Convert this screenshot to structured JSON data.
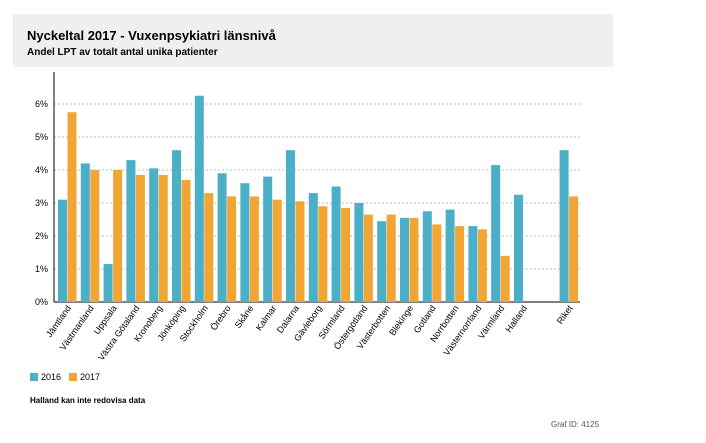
{
  "header": {
    "title": "Nyckeltal 2017 - Vuxenpsykiatri länsnivå",
    "subtitle": "Andel LPT av totalt antal unika patienter"
  },
  "footnote": "Halland kan inte redovisa data",
  "graf_id": "Graf ID: 4125",
  "colors": {
    "s2016": "#4bafc8",
    "s2017": "#f0a534"
  },
  "chart_data": {
    "type": "bar",
    "title": "Nyckeltal 2017 - Vuxenpsykiatri länsnivå",
    "subtitle": "Andel LPT av totalt antal unika patienter",
    "categories": [
      "Jämtland",
      "Västmanland",
      "Uppsala",
      "Västra Götaland",
      "Kronoberg",
      "Jönköping",
      "Stockholm",
      "Örebro",
      "Skåne",
      "Kalmar",
      "Dalarna",
      "Gävleborg",
      "Sörmland",
      "Östergötland",
      "Västerbotten",
      "Blekinge",
      "Gotland",
      "Norrbotten",
      "Västernorrland",
      "Värmland",
      "Halland",
      "Riket"
    ],
    "series": [
      {
        "name": "2016",
        "values": [
          3.1,
          4.2,
          1.15,
          4.3,
          4.05,
          4.6,
          6.25,
          3.9,
          3.6,
          3.8,
          4.6,
          3.3,
          3.5,
          3.0,
          2.45,
          2.55,
          2.75,
          2.8,
          2.3,
          4.15,
          3.25,
          4.6
        ]
      },
      {
        "name": "2017",
        "values": [
          5.75,
          4.0,
          4.0,
          3.85,
          3.85,
          3.7,
          3.3,
          3.2,
          3.2,
          3.1,
          3.05,
          2.9,
          2.85,
          2.65,
          2.65,
          2.55,
          2.35,
          2.3,
          2.2,
          1.4,
          null,
          3.2
        ]
      }
    ],
    "y_tick_labels": [
      "0%",
      "1%",
      "2%",
      "3%",
      "4%",
      "5%",
      "6%"
    ],
    "ylim": [
      0,
      7
    ],
    "grid": true,
    "legend": "bottom-left"
  }
}
